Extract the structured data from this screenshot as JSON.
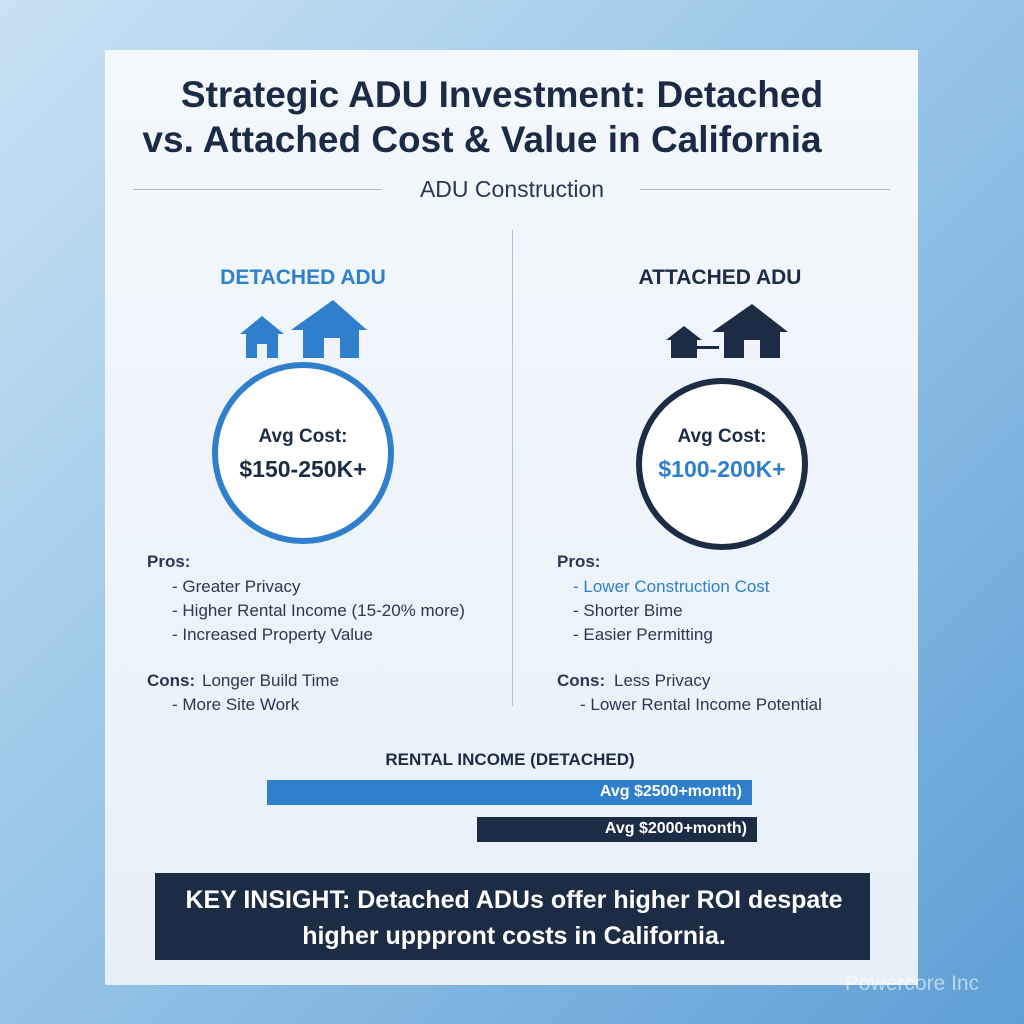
{
  "header": {
    "title_lines": [
      "Strategic ADU Investment: Detached",
      "vs. Attached Cost & Value in California"
    ],
    "subtitle": "ADU Construction"
  },
  "detached": {
    "heading": "DETACHED ADU",
    "cost_label": "Avg Cost:",
    "cost": "$150-250K+",
    "pros_label": "Pros:",
    "pros": [
      "- Greater Privacy",
      "- Higher Rental Income (15-20% more)",
      "- Increased Property Value"
    ],
    "cons_label": "Cons:",
    "cons": [
      "Longer Build Time",
      "- More Site Work"
    ]
  },
  "attached": {
    "heading": "ATTACHED ADU",
    "cost_label": "Avg Cost:",
    "cost": "$100-200K+",
    "pros_label": "Pros:",
    "pros": [
      "- Lower Construction Cost",
      "- Shorter Bime",
      "- Easier Permitting"
    ],
    "cons_label": "Cons:",
    "cons": [
      "Less Privacy",
      "- Lower Rental Income Potential"
    ]
  },
  "rental": {
    "heading": "RENTAL INCOME (DETACHED)",
    "bars": [
      "Avg $2500+month)",
      "Avg $2000+month)"
    ]
  },
  "insight": {
    "lines": [
      "KEY INSIGHT: Detached ADUs offer higher ROI despate",
      "higher upppront costs in California."
    ]
  },
  "watermark": "Powercore Inc"
}
